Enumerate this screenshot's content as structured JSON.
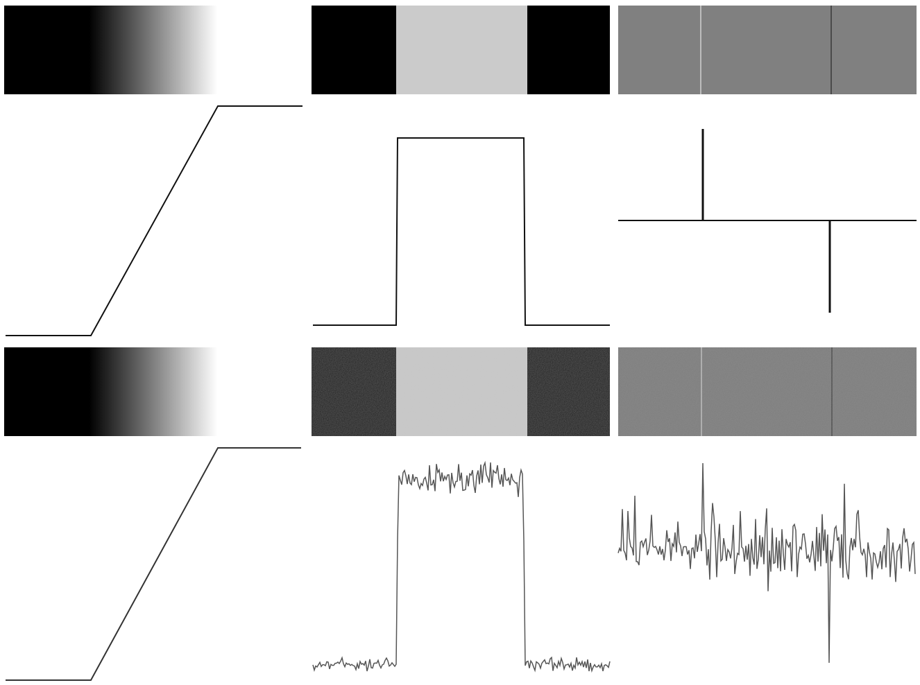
{
  "figure": {
    "colors": {
      "background": "#ffffff",
      "black": "#000000",
      "white": "#ffffff",
      "light_gray": "#cbcbcb",
      "mid_gray": "#808080",
      "clean_line": "#111111",
      "noisy_line": "#555555"
    },
    "columns": [
      {
        "id": "ramp",
        "description_kind": "ramp-edge"
      },
      {
        "id": "pulse",
        "description_kind": "box-pulse"
      },
      {
        "id": "impulse",
        "description_kind": "derivative-impulses"
      }
    ],
    "rows": [
      {
        "id": "clean",
        "noise": 0
      },
      {
        "id": "noisy",
        "noise": 1
      }
    ]
  }
}
